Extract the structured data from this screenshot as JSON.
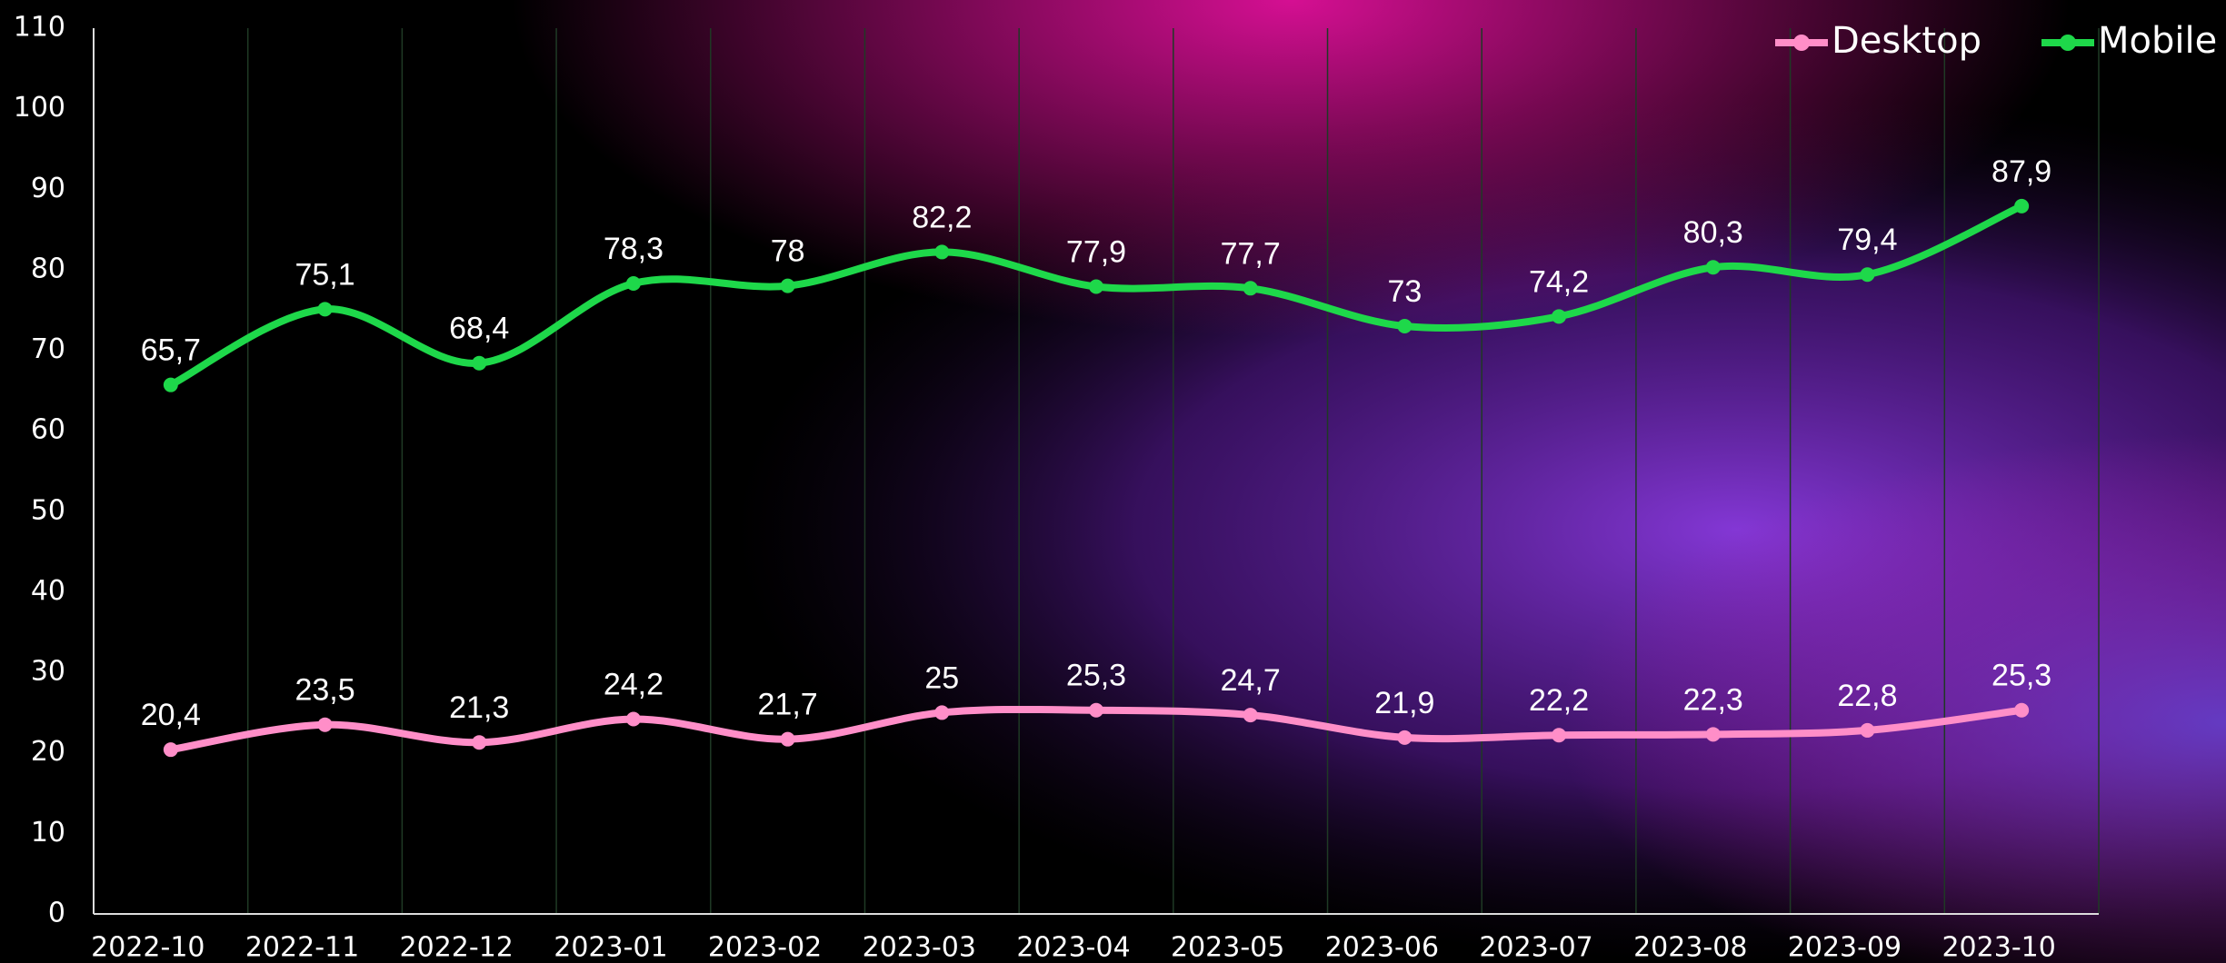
{
  "chart_data": {
    "type": "line",
    "categories": [
      "2022-10",
      "2022-11",
      "2022-12",
      "2023-01",
      "2023-02",
      "2023-03",
      "2023-04",
      "2023-05",
      "2023-06",
      "2023-07",
      "2023-08",
      "2023-09",
      "2023-10"
    ],
    "series": [
      {
        "name": "Desktop",
        "color": "#ff8ec8",
        "values": [
          20.4,
          23.5,
          21.3,
          24.2,
          21.7,
          25,
          25.3,
          24.7,
          21.9,
          22.2,
          22.3,
          22.8,
          25.3
        ],
        "value_labels": [
          "20,4",
          "23,5",
          "21,3",
          "24,2",
          "21,7",
          "25",
          "25,3",
          "24,7",
          "21,9",
          "22,2",
          "22,3",
          "22,8",
          "25,3"
        ]
      },
      {
        "name": "Mobile",
        "color": "#1ed84a",
        "values": [
          65.7,
          75.1,
          68.4,
          78.3,
          78,
          82.2,
          77.9,
          77.7,
          73,
          74.2,
          80.3,
          79.4,
          87.9
        ],
        "value_labels": [
          "65,7",
          "75,1",
          "68,4",
          "78,3",
          "78",
          "82,2",
          "77,9",
          "77,7",
          "73",
          "74,2",
          "80,3",
          "79,4",
          "87,9"
        ]
      }
    ],
    "ylim": [
      0,
      110
    ],
    "yticks": [
      0,
      10,
      20,
      30,
      40,
      50,
      60,
      70,
      80,
      90,
      100,
      110
    ],
    "grid": true,
    "legend": "top-right"
  }
}
